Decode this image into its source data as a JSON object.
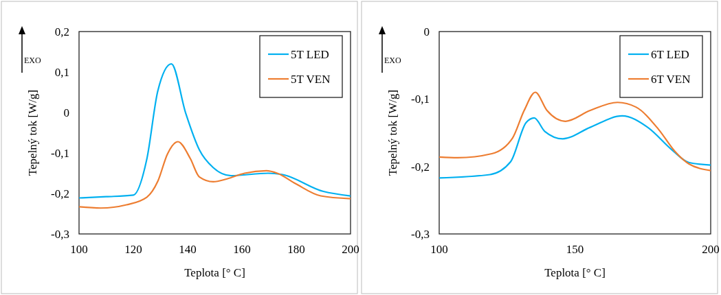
{
  "chart_data": [
    {
      "type": "line",
      "xlabel": "Teplota [° C]",
      "ylabel": "Tepelný tok [W/g]",
      "annotations": [
        "EXO"
      ],
      "xlim": [
        100,
        200
      ],
      "xticks": [
        100,
        120,
        140,
        160,
        180,
        200
      ],
      "ylim": [
        -0.3,
        0.2
      ],
      "yticks": [
        {
          "value": 0.2,
          "label": "0,2"
        },
        {
          "value": 0.1,
          "label": "0,1"
        },
        0,
        {
          "value": -0.1,
          "label": "-0,1"
        },
        {
          "value": -0.2,
          "label": "-0,2"
        },
        {
          "value": -0.3,
          "label": "-0,3"
        }
      ],
      "legend": "top right",
      "marker": "none",
      "line_style": "solid",
      "series": [
        {
          "name": "5T LED",
          "color": "#00b0f0",
          "x": [
            100,
            110,
            120,
            125,
            129,
            134,
            139.3,
            144.3,
            149.4,
            156,
            169.6,
            174.7,
            190,
            200
          ],
          "values": [
            -0.211,
            -0.208,
            -0.204,
            -0.114,
            0.053,
            0.12,
            -0.002,
            -0.092,
            -0.136,
            -0.156,
            -0.15,
            -0.153,
            -0.195,
            -0.206
          ]
        },
        {
          "name": "5T VEN",
          "color": "#ed7d31",
          "x": [
            100,
            108,
            117.5,
            125,
            129,
            132.6,
            136.4,
            141,
            144.3,
            149.4,
            154.5,
            161,
            169,
            173,
            179.8,
            189,
            200
          ],
          "values": [
            -0.233,
            -0.236,
            -0.228,
            -0.209,
            -0.17,
            -0.102,
            -0.072,
            -0.114,
            -0.159,
            -0.171,
            -0.164,
            -0.15,
            -0.144,
            -0.15,
            -0.176,
            -0.206,
            -0.213
          ]
        }
      ]
    },
    {
      "type": "line",
      "xlabel": "Teplota [° C]",
      "ylabel": "Tepelný tok [W/g]",
      "annotations": [
        "EXO"
      ],
      "xlim": [
        100,
        200
      ],
      "xticks": [
        100,
        150,
        200
      ],
      "ylim": [
        -0.3,
        0
      ],
      "yticks": [
        0,
        {
          "value": -0.1,
          "label": "-0,1"
        },
        {
          "value": -0.2,
          "label": "-0,2"
        },
        {
          "value": -0.3,
          "label": "-0,3"
        }
      ],
      "legend": "top right",
      "marker": "none",
      "line_style": "solid",
      "series": [
        {
          "name": "6T LED",
          "color": "#00b0f0",
          "x": [
            100,
            118.7,
            126.3,
            132,
            135,
            138.9,
            145.5,
            155.6,
            167.4,
            176.8,
            185.9,
            191.9,
            200
          ],
          "values": [
            -0.217,
            -0.212,
            -0.193,
            -0.135,
            -0.128,
            -0.148,
            -0.159,
            -0.142,
            -0.125,
            -0.142,
            -0.176,
            -0.194,
            -0.198
          ]
        },
        {
          "name": "6T VEN",
          "color": "#ed7d31",
          "x": [
            100,
            106.8,
            119.4,
            127,
            131.3,
            135.4,
            139.7,
            146.5,
            155.6,
            165.7,
            172.5,
            180.8,
            186.9,
            191.9,
            200
          ],
          "values": [
            -0.186,
            -0.187,
            -0.181,
            -0.158,
            -0.117,
            -0.09,
            -0.117,
            -0.133,
            -0.117,
            -0.105,
            -0.112,
            -0.145,
            -0.178,
            -0.196,
            -0.206
          ]
        }
      ]
    }
  ]
}
